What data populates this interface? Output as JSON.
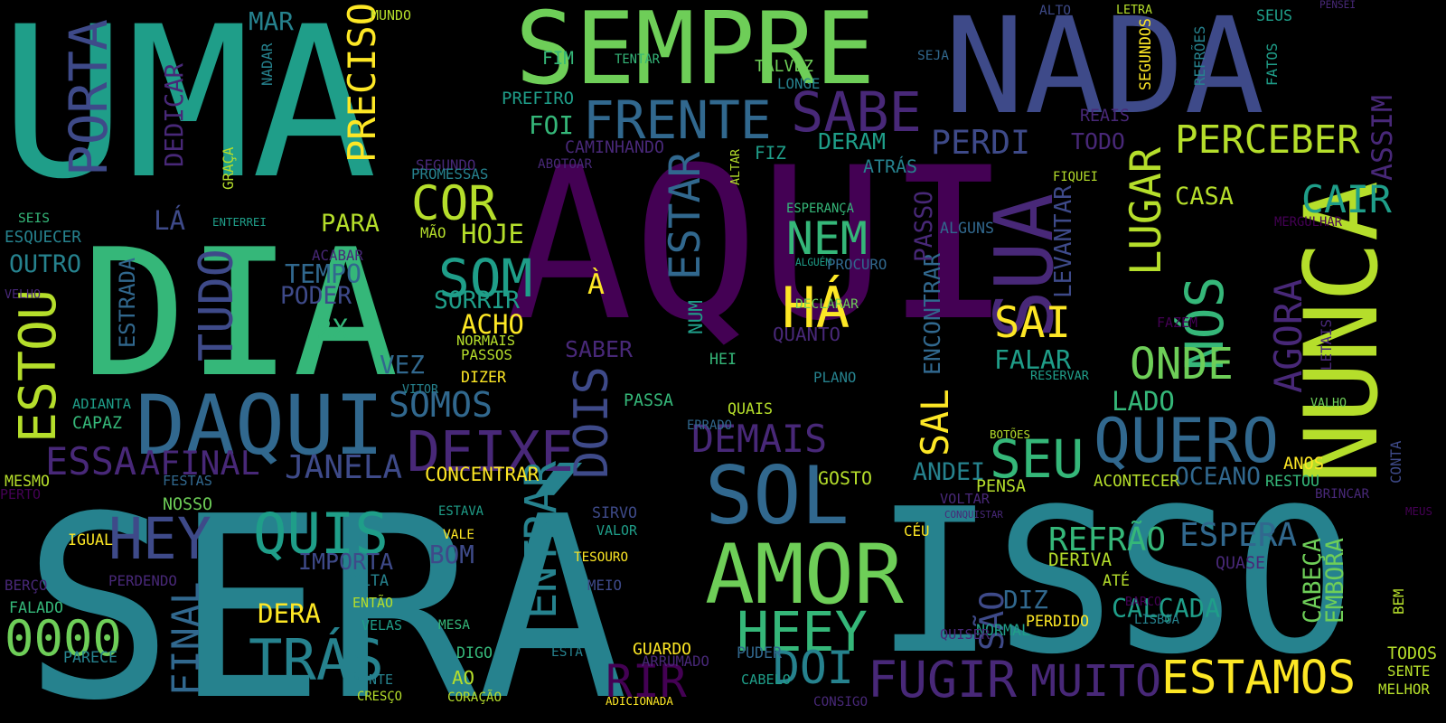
{
  "background": "#000000",
  "palette": {
    "p": "#440154",
    "i": "#482878",
    "b": "#3e4a89",
    "s": "#31688e",
    "t": "#26828e",
    "g": "#1f9e89",
    "m": "#35b779",
    "l": "#6ece58",
    "k": "#b5de2b",
    "y": "#fde725"
  },
  "words": [
    {
      "text": "AQUI",
      "color": "p"
    },
    {
      "text": "UMA",
      "color": "g"
    },
    {
      "text": "SERÁ",
      "color": "t"
    },
    {
      "text": "ISSO",
      "color": "t"
    },
    {
      "text": "DIA",
      "color": "m"
    },
    {
      "text": "NADA",
      "color": "b"
    },
    {
      "text": "SEMPRE",
      "color": "l"
    },
    {
      "text": "NUNCA",
      "color": "k"
    },
    {
      "text": "AMOR",
      "color": "l"
    },
    {
      "text": "SOL",
      "color": "s"
    },
    {
      "text": "DAQUI",
      "color": "s"
    },
    {
      "text": "SUA",
      "color": "i"
    },
    {
      "text": "DEIXE",
      "color": "i"
    },
    {
      "text": "FRENTE",
      "color": "s"
    },
    {
      "text": "QUERO",
      "color": "s"
    },
    {
      "text": "HEEY",
      "color": "m"
    },
    {
      "text": "ESTAMOS",
      "color": "y"
    },
    {
      "text": "FUGIR",
      "color": "i"
    },
    {
      "text": "MUITO",
      "color": "i"
    },
    {
      "text": "TRÁS",
      "color": "t"
    },
    {
      "text": "SABE",
      "color": "i"
    },
    {
      "text": "QUIS",
      "color": "g"
    },
    {
      "text": "DOI",
      "color": "t"
    },
    {
      "text": "0000",
      "color": "l"
    },
    {
      "text": "ENTRAR",
      "color": "t"
    },
    {
      "text": "ESTAR",
      "color": "s"
    },
    {
      "text": "AGORA",
      "color": "i"
    },
    {
      "text": "ASSIM",
      "color": "i"
    },
    {
      "text": "NÓS",
      "color": "m"
    },
    {
      "text": "SEU",
      "color": "m"
    },
    {
      "text": "ONDE",
      "color": "l"
    },
    {
      "text": "CAIR",
      "color": "g"
    },
    {
      "text": "PERCEBER",
      "color": "k"
    },
    {
      "text": "LUGAR",
      "color": "k"
    },
    {
      "text": "HEY",
      "color": "b"
    },
    {
      "text": "COR",
      "color": "k"
    },
    {
      "text": "SOM",
      "color": "g"
    },
    {
      "text": "TUDO",
      "color": "b"
    },
    {
      "text": "PORTA",
      "color": "b"
    },
    {
      "text": "ESTOU",
      "color": "k"
    },
    {
      "text": "HÁ",
      "color": "y"
    },
    {
      "text": "NEM",
      "color": "m"
    },
    {
      "text": "FINAL",
      "color": "s"
    },
    {
      "text": "DOIS",
      "color": "b"
    },
    {
      "text": "SÃO",
      "color": "b"
    },
    {
      "text": "RIR",
      "color": "p"
    },
    {
      "text": "PRECISO",
      "color": "y"
    },
    {
      "text": "ESPERA",
      "color": "s"
    },
    {
      "text": "CALÇADA",
      "color": "g"
    },
    {
      "text": "SAI",
      "color": "y"
    },
    {
      "text": "REFRÃO",
      "color": "m"
    },
    {
      "text": "DEMAIS",
      "color": "i"
    },
    {
      "text": "AFINAL",
      "color": "i"
    },
    {
      "text": "ESSA",
      "color": "i"
    },
    {
      "text": "JANELA",
      "color": "b"
    },
    {
      "text": "SOMOS",
      "color": "s"
    },
    {
      "text": "PERDI",
      "color": "b"
    },
    {
      "text": "IMPORTA",
      "color": "b"
    },
    {
      "text": "SAL",
      "color": "y"
    },
    {
      "text": "CABEÇA",
      "color": "l"
    },
    {
      "text": "EMBORA",
      "color": "l"
    },
    {
      "text": "DIZ",
      "color": "s"
    },
    {
      "text": "LADO",
      "color": "m"
    },
    {
      "text": "ESTRADA",
      "color": "s"
    },
    {
      "text": "FALAR",
      "color": "g"
    },
    {
      "text": "QUANTO",
      "color": "i"
    },
    {
      "text": "DEDICAR",
      "color": "i"
    },
    {
      "text": "ENCONTRAR",
      "color": "s"
    },
    {
      "text": "LEVANTAR",
      "color": "b"
    },
    {
      "text": "PASSO",
      "color": "i"
    },
    {
      "text": "HOJE",
      "color": "k"
    },
    {
      "text": "PARA",
      "color": "k"
    },
    {
      "text": "ACHO",
      "color": "y"
    },
    {
      "text": "SORRIR",
      "color": "g"
    },
    {
      "text": "TEMPO",
      "color": "s"
    },
    {
      "text": "PODER",
      "color": "b"
    },
    {
      "text": "VEZ",
      "color": "s"
    },
    {
      "text": "OUTRO",
      "color": "t"
    },
    {
      "text": "ESQUECER",
      "color": "t"
    },
    {
      "text": "MAR",
      "color": "t"
    },
    {
      "text": "FOI",
      "color": "m"
    },
    {
      "text": "DERAM",
      "color": "g"
    },
    {
      "text": "TODO",
      "color": "i"
    },
    {
      "text": "CASA",
      "color": "k"
    },
    {
      "text": "OCEANO",
      "color": "s"
    },
    {
      "text": "ANDEI",
      "color": "t"
    },
    {
      "text": "SABER",
      "color": "i"
    },
    {
      "text": "DERA",
      "color": "y"
    },
    {
      "text": "BOM",
      "color": "b"
    },
    {
      "text": "VOLTA",
      "color": "t"
    },
    {
      "text": "LÁ",
      "color": "b"
    },
    {
      "text": "2X",
      "color": "m"
    },
    {
      "text": "À",
      "color": "y"
    },
    {
      "text": "NUM",
      "color": "g"
    },
    {
      "text": "GOSTO",
      "color": "k"
    },
    {
      "text": "DERIVA",
      "color": "k"
    },
    {
      "text": "ACONTECER",
      "color": "k"
    },
    {
      "text": "MUNDO",
      "color": "k"
    },
    {
      "text": "NADAR",
      "color": "t"
    },
    {
      "text": "GRAÇA",
      "color": "k"
    },
    {
      "text": "FIM",
      "color": "m"
    },
    {
      "text": "TENTAR",
      "color": "m"
    },
    {
      "text": "PREFIRO",
      "color": "g"
    },
    {
      "text": "TALVEZ",
      "color": "l"
    },
    {
      "text": "LONGE",
      "color": "t"
    },
    {
      "text": "CAMINHANDO",
      "color": "i"
    },
    {
      "text": "FIZ",
      "color": "g"
    },
    {
      "text": "ATRÁS",
      "color": "t"
    },
    {
      "text": "SEGUNDO",
      "color": "i"
    },
    {
      "text": "PROMESSAS",
      "color": "t"
    },
    {
      "text": "ABOTOAR",
      "color": "i"
    },
    {
      "text": "ALTAR",
      "color": "k"
    },
    {
      "text": "ESPERANÇA",
      "color": "m"
    },
    {
      "text": "ALGUNS",
      "color": "s"
    },
    {
      "text": "FIQUEI",
      "color": "k"
    },
    {
      "text": "REAIS",
      "color": "i"
    },
    {
      "text": "ALTO",
      "color": "b"
    },
    {
      "text": "LETRA",
      "color": "k"
    },
    {
      "text": "SEUS",
      "color": "g"
    },
    {
      "text": "PENSEI",
      "color": "i"
    },
    {
      "text": "SEGUNDOS",
      "color": "y"
    },
    {
      "text": "REFRÕES",
      "color": "t"
    },
    {
      "text": "FATOS",
      "color": "g"
    },
    {
      "text": "SEJA",
      "color": "s"
    },
    {
      "text": "SEIS",
      "color": "m"
    },
    {
      "text": "ENTERREI",
      "color": "g"
    },
    {
      "text": "MÃO",
      "color": "k"
    },
    {
      "text": "ACABAR",
      "color": "i"
    },
    {
      "text": "VELHO",
      "color": "i"
    },
    {
      "text": "ALGUÉM",
      "color": "g"
    },
    {
      "text": "PROCURO",
      "color": "s"
    },
    {
      "text": "DECLARAR",
      "color": "l"
    },
    {
      "text": "NORMAIS",
      "color": "k"
    },
    {
      "text": "PASSOS",
      "color": "k"
    },
    {
      "text": "HEI",
      "color": "m"
    },
    {
      "text": "PLANO",
      "color": "t"
    },
    {
      "text": "RESERVAR",
      "color": "g"
    },
    {
      "text": "LETAIS",
      "color": "i"
    },
    {
      "text": "FAZEM",
      "color": "p"
    },
    {
      "text": "MERGULHAR",
      "color": "p"
    },
    {
      "text": "VALHO",
      "color": "l"
    },
    {
      "text": "DIZER",
      "color": "y"
    },
    {
      "text": "VITOR",
      "color": "t"
    },
    {
      "text": "ADIANTA",
      "color": "g"
    },
    {
      "text": "CAPAZ",
      "color": "m"
    },
    {
      "text": "PASSA",
      "color": "m"
    },
    {
      "text": "QUAIS",
      "color": "k"
    },
    {
      "text": "BOTÕES",
      "color": "k"
    },
    {
      "text": "CONCENTRAR",
      "color": "y"
    },
    {
      "text": "ERRADO",
      "color": "s"
    },
    {
      "text": "FESTAS",
      "color": "s"
    },
    {
      "text": "MESMO",
      "color": "k"
    },
    {
      "text": "PERTO",
      "color": "p"
    },
    {
      "text": "NOSSO",
      "color": "l"
    },
    {
      "text": "SIRVO",
      "color": "b"
    },
    {
      "text": "VALOR",
      "color": "g"
    },
    {
      "text": "ESTAVA",
      "color": "g"
    },
    {
      "text": "VALE",
      "color": "y"
    },
    {
      "text": "IGUAL",
      "color": "y"
    },
    {
      "text": "PERDENDO",
      "color": "i"
    },
    {
      "text": "TESOURO",
      "color": "y"
    },
    {
      "text": "MEIO",
      "color": "b"
    },
    {
      "text": "VOLTAR",
      "color": "i"
    },
    {
      "text": "CÉU",
      "color": "y"
    },
    {
      "text": "CONQUISTAR",
      "color": "i"
    },
    {
      "text": "PENSA",
      "color": "k"
    },
    {
      "text": "RESTOU",
      "color": "m"
    },
    {
      "text": "BRINCAR",
      "color": "i"
    },
    {
      "text": "ANOS",
      "color": "y"
    },
    {
      "text": "CONTA",
      "color": "b"
    },
    {
      "text": "MEUS",
      "color": "p"
    },
    {
      "text": "QUASE",
      "color": "i"
    },
    {
      "text": "BEM",
      "color": "k"
    },
    {
      "text": "ATÉ",
      "color": "k"
    },
    {
      "text": "BARCO",
      "color": "p"
    },
    {
      "text": "LISBOA",
      "color": "t"
    },
    {
      "text": "PERDIDO",
      "color": "y"
    },
    {
      "text": "NORMAL",
      "color": "g"
    },
    {
      "text": "QUISER",
      "color": "i"
    },
    {
      "text": "BERÇO",
      "color": "i"
    },
    {
      "text": "FALADO",
      "color": "m"
    },
    {
      "text": "ENTÃO",
      "color": "k"
    },
    {
      "text": "VELAS",
      "color": "g"
    },
    {
      "text": "MESA",
      "color": "m"
    },
    {
      "text": "GUARDO",
      "color": "y"
    },
    {
      "text": "ARRUMADO",
      "color": "i"
    },
    {
      "text": "PUDER",
      "color": "s"
    },
    {
      "text": "CABELO",
      "color": "g"
    },
    {
      "text": "DIGO",
      "color": "m"
    },
    {
      "text": "ESTÁ",
      "color": "t"
    },
    {
      "text": "AO",
      "color": "k"
    },
    {
      "text": "PARECE",
      "color": "t"
    },
    {
      "text": "MENTE",
      "color": "t"
    },
    {
      "text": "CRESÇO",
      "color": "k"
    },
    {
      "text": "CORAÇÃO",
      "color": "k"
    },
    {
      "text": "ADICIONADA",
      "color": "y"
    },
    {
      "text": "CONSIGO",
      "color": "i"
    },
    {
      "text": "TODOS",
      "color": "k"
    },
    {
      "text": "SENTE",
      "color": "k"
    },
    {
      "text": "MELHOR",
      "color": "k"
    }
  ]
}
